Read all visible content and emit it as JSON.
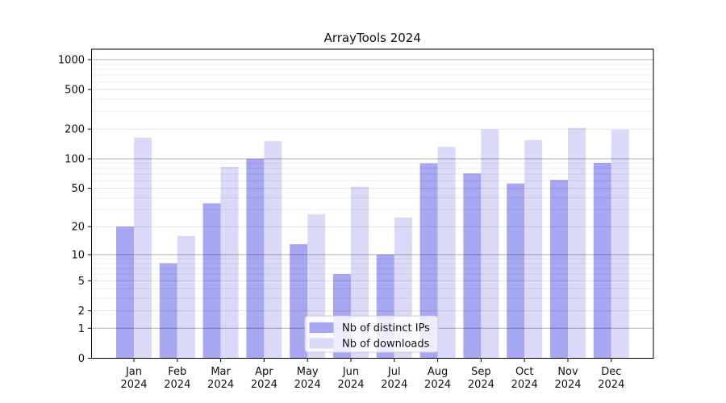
{
  "chart_data": {
    "type": "bar",
    "title": "ArrayTools 2024",
    "categories": [
      [
        "Jan",
        "2024"
      ],
      [
        "Feb",
        "2024"
      ],
      [
        "Mar",
        "2024"
      ],
      [
        "Apr",
        "2024"
      ],
      [
        "May",
        "2024"
      ],
      [
        "Jun",
        "2024"
      ],
      [
        "Jul",
        "2024"
      ],
      [
        "Aug",
        "2024"
      ],
      [
        "Sep",
        "2024"
      ],
      [
        "Oct",
        "2024"
      ],
      [
        "Nov",
        "2024"
      ],
      [
        "Dec",
        "2024"
      ]
    ],
    "series": [
      {
        "name": "Nb of distinct IPs",
        "color": "#a7a7f2",
        "values": [
          20,
          8,
          35,
          100,
          13,
          6,
          10,
          90,
          71,
          56,
          61,
          91
        ]
      },
      {
        "name": "Nb of downloads",
        "color": "#dadaf8",
        "values": [
          164,
          16,
          83,
          151,
          27,
          52,
          25,
          132,
          198,
          155,
          205,
          197
        ]
      }
    ],
    "xlabel": "",
    "ylabel": "",
    "yscale": "log1p",
    "yticks": [
      0,
      1,
      2,
      5,
      10,
      20,
      50,
      100,
      200,
      500,
      1000
    ],
    "ylim": [
      0,
      1275
    ],
    "grid": "both",
    "legend_position": "lower center"
  },
  "colors": {
    "axis": "#000000",
    "major_grid": "rgba(0,0,0,0.30)",
    "labeled_grid": "rgba(0,0,0,0.11)",
    "minor_grid": "rgba(0,0,0,0.07)",
    "legend_border": "#cccccc",
    "legend_fill": "rgba(255,255,255,0.8)"
  }
}
